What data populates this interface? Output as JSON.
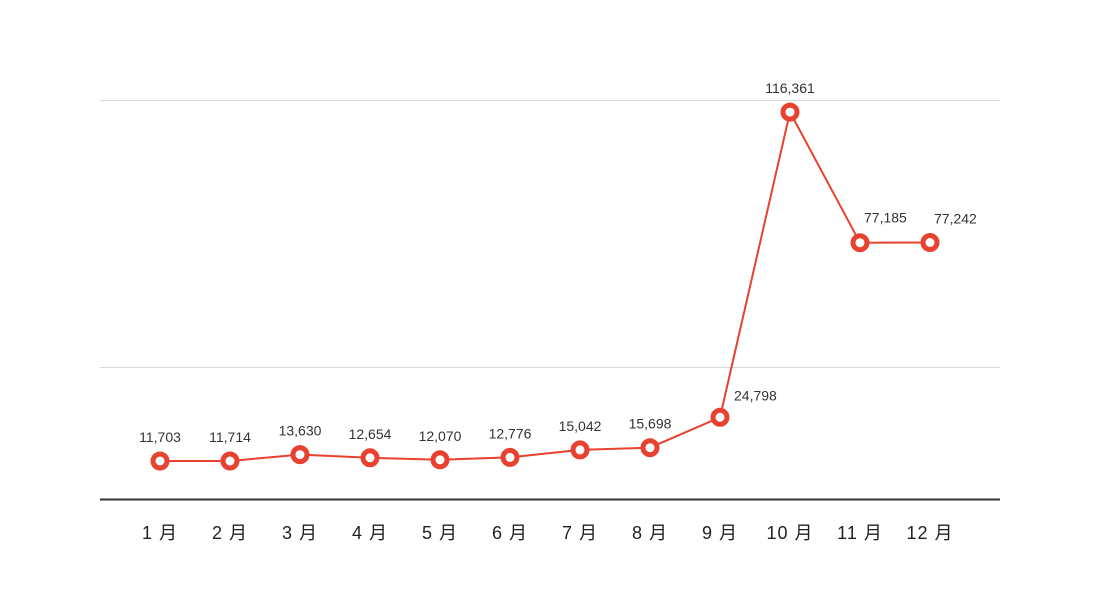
{
  "chart_data": {
    "type": "line",
    "title": "",
    "xlabel": "",
    "ylabel": "",
    "categories": [
      "1 月",
      "2 月",
      "3 月",
      "4 月",
      "5 月",
      "6 月",
      "7 月",
      "8 月",
      "9 月",
      "10 月",
      "11 月",
      "12 月"
    ],
    "series": [
      {
        "values": [
          11703,
          11714,
          13630,
          12654,
          12070,
          12776,
          15042,
          15698,
          24798,
          116361,
          77185,
          77242
        ],
        "labels": [
          "11,703",
          "11,714",
          "13,630",
          "12,654",
          "12,070",
          "12,776",
          "15,042",
          "15,698",
          "24,798",
          "116,361",
          "77,185",
          "77,242"
        ],
        "color": "#e8412f"
      }
    ],
    "grid": true,
    "legend": "none",
    "colors": {
      "line": "#e8412f",
      "grid": "#d9d9d9",
      "axis": "#333333"
    }
  }
}
